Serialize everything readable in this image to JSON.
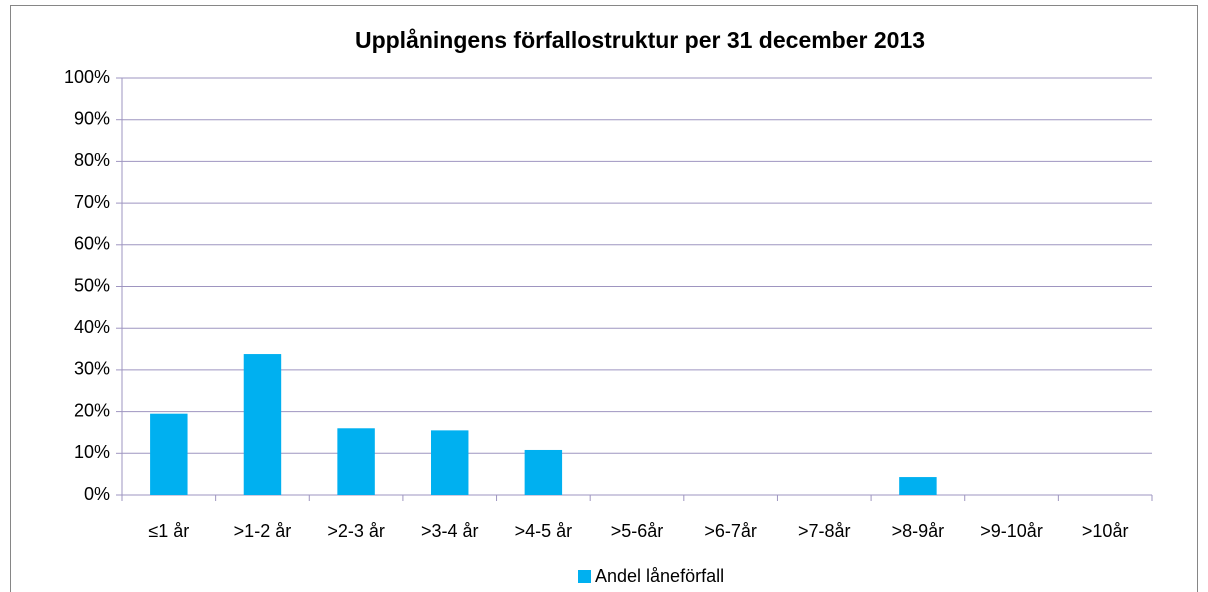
{
  "chart_data": {
    "type": "bar",
    "title": "Upplåningens förfallostruktur per 31 december 2013",
    "categories": [
      "≤1 år",
      ">1-2 år",
      ">2-3 år",
      ">3-4 år",
      ">4-5 år",
      ">5-6år",
      ">6-7år",
      ">7-8år",
      ">8-9år",
      ">9-10år",
      ">10år"
    ],
    "series": [
      {
        "name": "Andel låneförfall",
        "color": "#00b0f0",
        "values": [
          19.5,
          33.8,
          16,
          15.5,
          10.8,
          0,
          0,
          0,
          4.3,
          0,
          0
        ]
      }
    ],
    "ylim": [
      0,
      100
    ],
    "yticks": [
      {
        "value": 0,
        "label": "0%"
      },
      {
        "value": 10,
        "label": "10%"
      },
      {
        "value": 20,
        "label": "20%"
      },
      {
        "value": 30,
        "label": "30%"
      },
      {
        "value": 40,
        "label": "40%"
      },
      {
        "value": 50,
        "label": "50%"
      },
      {
        "value": 60,
        "label": "60%"
      },
      {
        "value": 70,
        "label": "70%"
      },
      {
        "value": 80,
        "label": "80%"
      },
      {
        "value": 90,
        "label": "90%"
      },
      {
        "value": 100,
        "label": "100%"
      }
    ],
    "grid": true,
    "legend": "bottom"
  }
}
